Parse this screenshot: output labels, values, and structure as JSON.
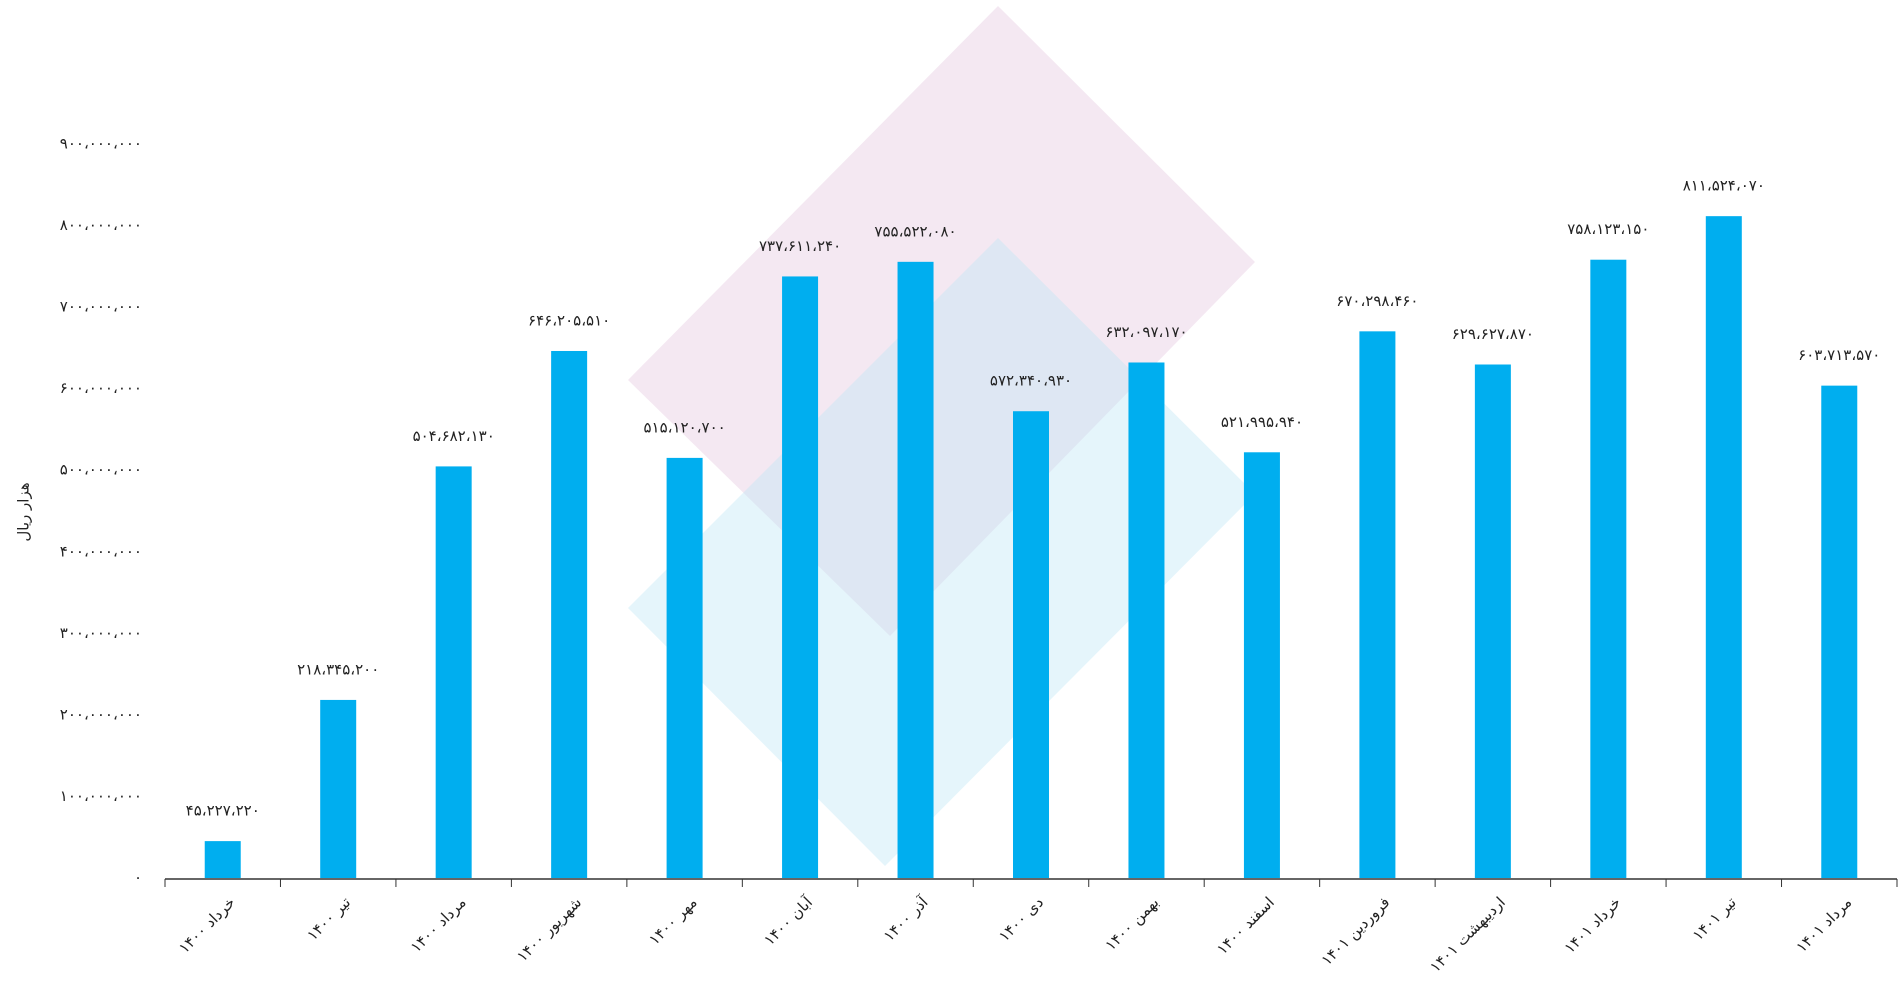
{
  "chart_data": {
    "type": "bar",
    "y_label": "هزار ریال",
    "categories": [
      "خرداد ۱۴۰۰",
      "تیر ۱۴۰۰",
      "مرداد ۱۴۰۰",
      "شهریور ۱۴۰۰",
      "مهر ۱۴۰۰",
      "آبان ۱۴۰۰",
      "آذر ۱۴۰۰",
      "دی ۱۴۰۰",
      "بهمن ۱۴۰۰",
      "اسفند ۱۴۰۰",
      "فروردین ۱۴۰۱",
      "اردیبهشت ۱۴۰۱",
      "خرداد ۱۴۰۱",
      "تیر ۱۴۰۱",
      "مرداد ۱۴۰۱"
    ],
    "values": [
      45227220,
      218345200,
      504682130,
      646205510,
      515120700,
      737611240,
      755522080,
      572340930,
      632097170,
      521995940,
      670298460,
      629627870,
      758123150,
      811524070,
      603713570
    ],
    "value_labels": [
      "۴۵،۲۲۷،۲۲۰",
      "۲۱۸،۳۴۵،۲۰۰",
      "۵۰۴،۶۸۲،۱۳۰",
      "۶۴۶،۲۰۵،۵۱۰",
      "۵۱۵،۱۲۰،۷۰۰",
      "۷۳۷،۶۱۱،۲۴۰",
      "۷۵۵،۵۲۲،۰۸۰",
      "۵۷۲،۳۴۰،۹۳۰",
      "۶۳۲،۰۹۷،۱۷۰",
      "۵۲۱،۹۹۵،۹۴۰",
      "۶۷۰،۲۹۸،۴۶۰",
      "۶۲۹،۶۲۷،۸۷۰",
      "۷۵۸،۱۲۳،۱۵۰",
      "۸۱۱،۵۲۴،۰۷۰",
      "۶۰۳،۷۱۳،۵۷۰"
    ],
    "color": "#00aeef",
    "ylim": [
      0,
      900000000
    ],
    "yticks": [
      {
        "value": 0,
        "label": "۰"
      },
      {
        "value": 100000000,
        "label": "۱۰۰،۰۰۰،۰۰۰"
      },
      {
        "value": 200000000,
        "label": "۲۰۰،۰۰۰،۰۰۰"
      },
      {
        "value": 300000000,
        "label": "۳۰۰،۰۰۰،۰۰۰"
      },
      {
        "value": 400000000,
        "label": "۴۰۰،۰۰۰،۰۰۰"
      },
      {
        "value": 500000000,
        "label": "۵۰۰،۰۰۰،۰۰۰"
      },
      {
        "value": 600000000,
        "label": "۶۰۰،۰۰۰،۰۰۰"
      },
      {
        "value": 700000000,
        "label": "۷۰۰،۰۰۰،۰۰۰"
      },
      {
        "value": 800000000,
        "label": "۸۰۰،۰۰۰،۰۰۰"
      },
      {
        "value": 900000000,
        "label": "۹۰۰،۰۰۰،۰۰۰"
      }
    ],
    "grid": false
  }
}
